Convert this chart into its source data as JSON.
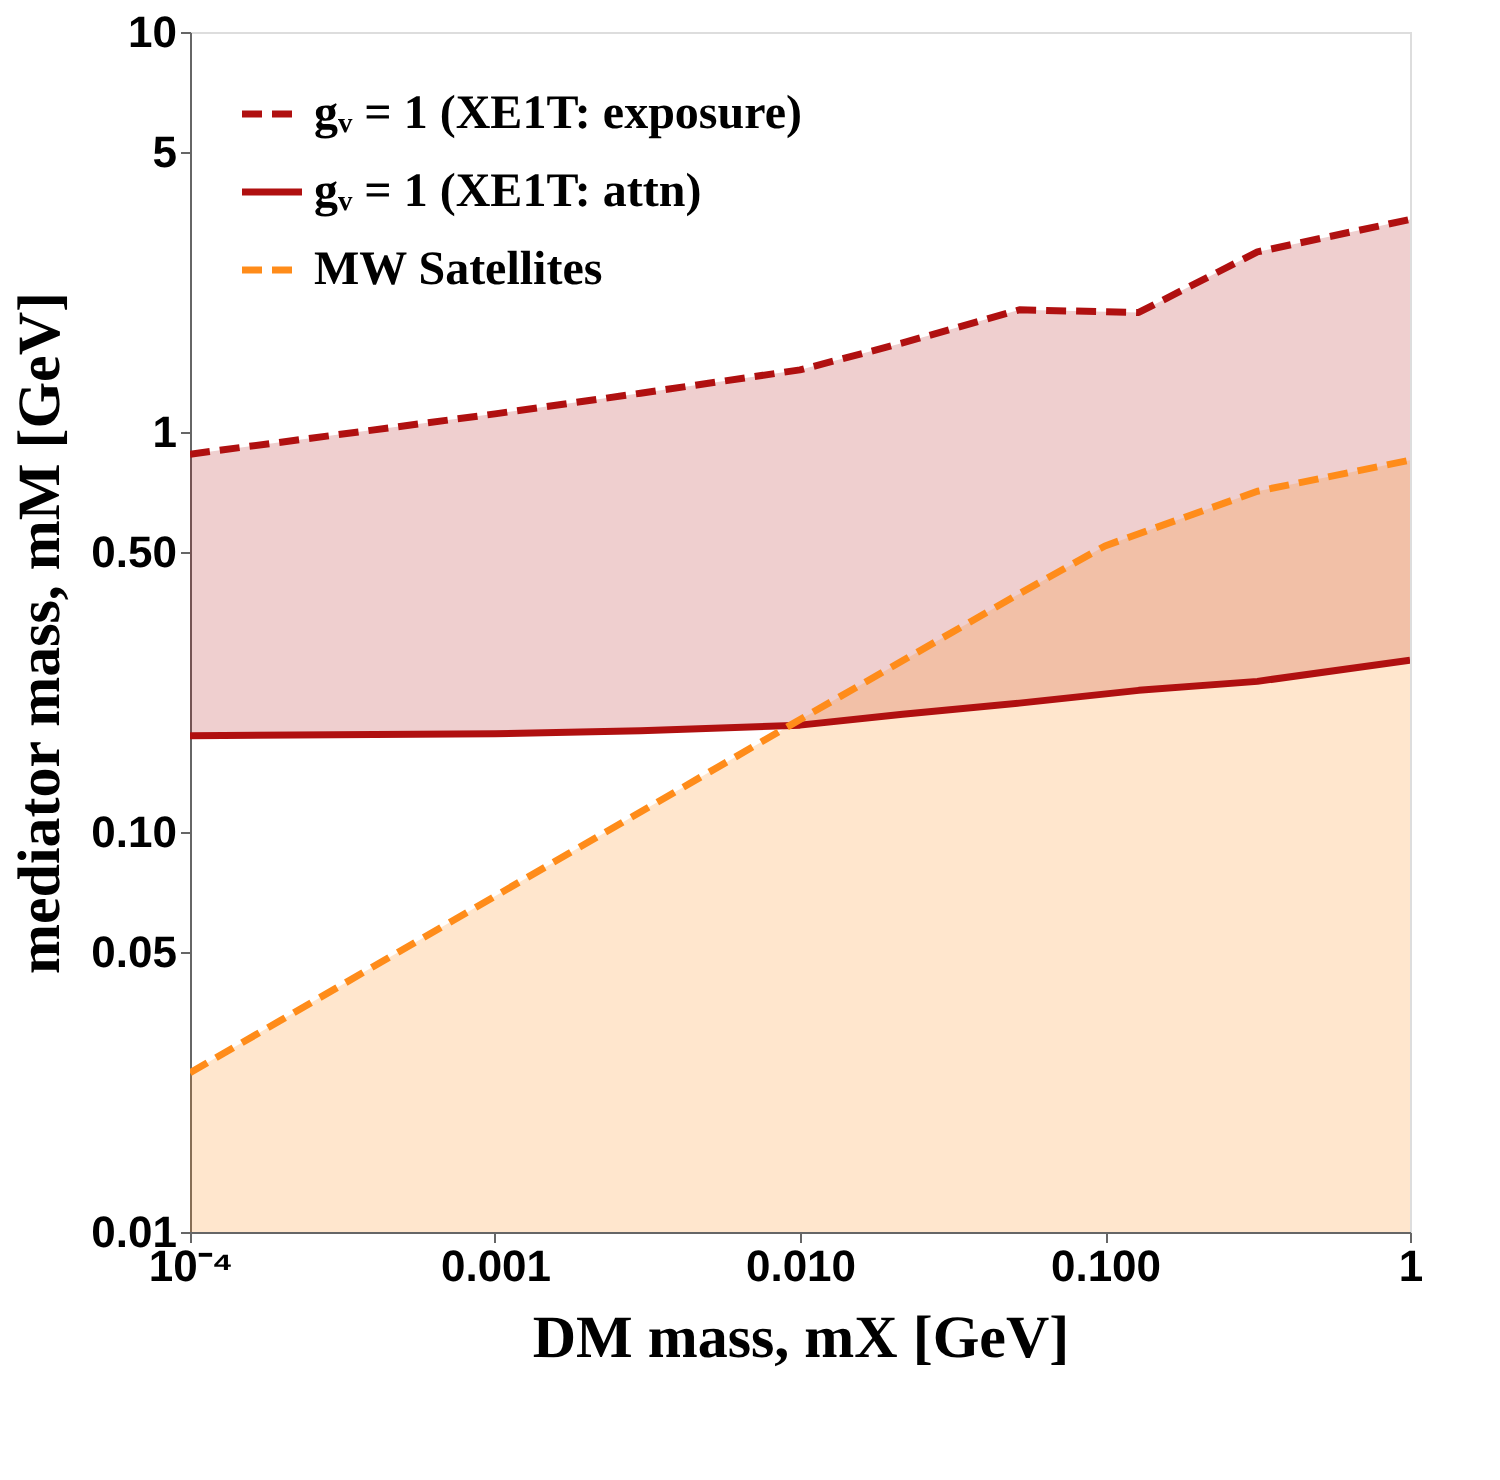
{
  "chart_data": {
    "type": "line",
    "xlabel": "DM mass, mX [GeV]",
    "ylabel": "mediator mass, mM [GeV]",
    "log": "xy",
    "xlim": [
      0.0001,
      1
    ],
    "xticks": [
      {
        "value": 0.0001,
        "label": "10⁻⁴"
      },
      0.001,
      {
        "value": 0.01,
        "label": "0.010"
      },
      {
        "value": 0.1,
        "label": "0.100"
      },
      1
    ],
    "ylim": [
      0.01,
      10
    ],
    "yticks": [
      0.01,
      0.05,
      {
        "value": 0.1,
        "label": "0.10"
      },
      {
        "value": 0.5,
        "label": "0.50"
      },
      1,
      5,
      10
    ],
    "grid": false,
    "legend": "top left",
    "series": [
      {
        "name": "gᵥ = 1 (XE1T: exposure)",
        "color": "#b01010",
        "line_style": "dashed",
        "x": [
          0.0001,
          0.001,
          0.003,
          0.01,
          0.0217,
          0.0524,
          0.129,
          0.316,
          1
        ],
        "values": [
          0.88,
          1.11,
          1.25,
          1.43,
          1.67,
          2.02,
          1.99,
          2.82,
          3.4
        ],
        "upper": [
          0.88,
          1.11,
          1.25,
          1.43,
          1.67,
          2.02,
          1.99,
          2.82,
          3.4
        ],
        "lower": [
          0.174,
          0.176,
          0.179,
          0.185,
          0.197,
          0.21,
          0.226,
          0.238,
          0.269
        ]
      },
      {
        "name": "gᵥ = 1 (XE1T: attn)",
        "color": "#b01010",
        "line_style": "solid",
        "x": [
          0.0001,
          0.001,
          0.003,
          0.01,
          0.0217,
          0.0524,
          0.129,
          0.316,
          1
        ],
        "values": [
          0.174,
          0.176,
          0.179,
          0.185,
          0.197,
          0.21,
          0.226,
          0.238,
          0.269
        ]
      },
      {
        "name": "MW Satellites",
        "type": "area",
        "color": "#ff8c1a",
        "line_style": "dashed",
        "x": [
          0.0001,
          0.0093,
          0.0505,
          0.1,
          0.316,
          1
        ],
        "values": [
          0.025,
          0.185,
          0.388,
          0.519,
          0.711,
          0.85
        ]
      }
    ]
  }
}
